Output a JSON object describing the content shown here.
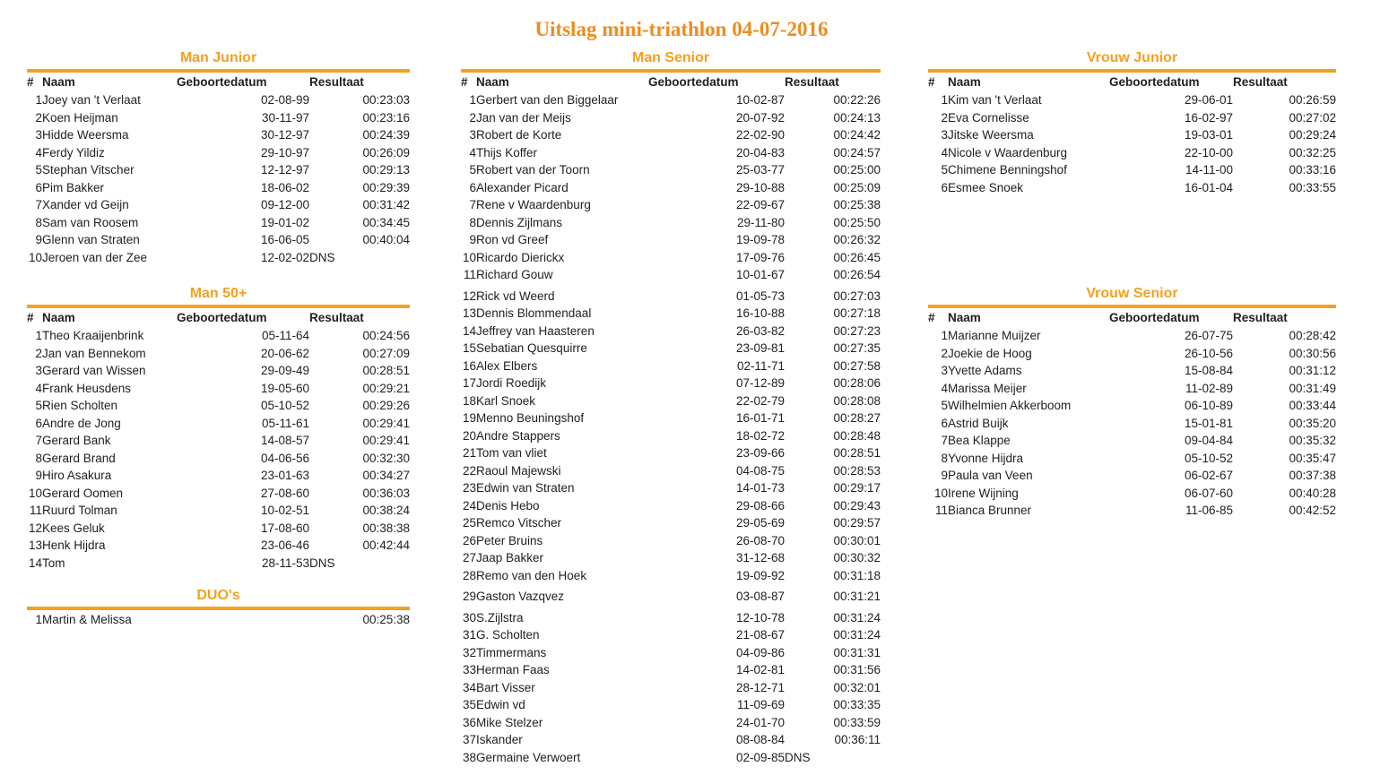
{
  "title": "Uitslag mini-triathlon 04-07-2016",
  "accent_color": "#f5a01e",
  "title_color": "#ed8d1e",
  "headers": {
    "rank": "#",
    "name": "Naam",
    "dob": "Geboortedatum",
    "result": "Resultaat"
  },
  "sections": {
    "man_junior": {
      "title": "Man Junior",
      "rows": [
        {
          "n": 1,
          "name": "Joey van 't Verlaat",
          "dob": "02-08-99",
          "res": "00:23:03"
        },
        {
          "n": 2,
          "name": "Koen Heijman",
          "dob": "30-11-97",
          "res": "00:23:16"
        },
        {
          "n": 3,
          "name": "Hidde Weersma",
          "dob": "30-12-97",
          "res": "00:24:39"
        },
        {
          "n": 4,
          "name": "Ferdy Yildiz",
          "dob": "29-10-97",
          "res": "00:26:09"
        },
        {
          "n": 5,
          "name": "Stephan Vitscher",
          "dob": "12-12-97",
          "res": "00:29:13"
        },
        {
          "n": 6,
          "name": "Pim Bakker",
          "dob": "18-06-02",
          "res": "00:29:39"
        },
        {
          "n": 7,
          "name": "Xander vd Geijn",
          "dob": "09-12-00",
          "res": "00:31:42"
        },
        {
          "n": 8,
          "name": "Sam van Roosem",
          "dob": "19-01-02",
          "res": "00:34:45"
        },
        {
          "n": 9,
          "name": "Glenn van Straten",
          "dob": "16-06-05",
          "res": "00:40:04"
        },
        {
          "n": 10,
          "name": "Jeroen van der Zee",
          "dob": "12-02-02",
          "dns": "DNS",
          "res": ""
        }
      ]
    },
    "man_50": {
      "title": "Man 50+",
      "rows": [
        {
          "n": 1,
          "name": "Theo Kraaijenbrink",
          "dob": "05-11-64",
          "res": "00:24:56"
        },
        {
          "n": 2,
          "name": "Jan van Bennekom",
          "dob": "20-06-62",
          "res": "00:27:09"
        },
        {
          "n": 3,
          "name": "Gerard van Wissen",
          "dob": "29-09-49",
          "res": "00:28:51"
        },
        {
          "n": 4,
          "name": "Frank Heusdens",
          "dob": "19-05-60",
          "res": "00:29:21"
        },
        {
          "n": 5,
          "name": "Rien Scholten",
          "dob": "05-10-52",
          "res": "00:29:26"
        },
        {
          "n": 6,
          "name": "Andre de Jong",
          "dob": "05-11-61",
          "res": "00:29:41"
        },
        {
          "n": 7,
          "name": "Gerard Bank",
          "dob": "14-08-57",
          "res": "00:29:41"
        },
        {
          "n": 8,
          "name": "Gerard Brand",
          "dob": "04-06-56",
          "res": "00:32:30"
        },
        {
          "n": 9,
          "name": "Hiro Asakura",
          "dob": "23-01-63",
          "res": "00:34:27"
        },
        {
          "n": 10,
          "name": "Gerard Oomen",
          "dob": "27-08-60",
          "res": "00:36:03"
        },
        {
          "n": 11,
          "name": "Ruurd Tolman",
          "dob": "10-02-51",
          "res": "00:38:24"
        },
        {
          "n": 12,
          "name": "Kees Geluk",
          "dob": "17-08-60",
          "res": "00:38:38"
        },
        {
          "n": 13,
          "name": "Henk Hijdra",
          "dob": "23-06-46",
          "res": "00:42:44"
        },
        {
          "n": 14,
          "name": "Tom",
          "dob": "28-11-53",
          "dns": "DNS",
          "res": ""
        }
      ]
    },
    "duos": {
      "title": "DUO's",
      "rows": [
        {
          "n": 1,
          "name": "Martin & Melissa",
          "dob": "",
          "res": "00:25:38"
        }
      ]
    },
    "man_senior": {
      "title": "Man Senior",
      "rows": [
        {
          "n": 1,
          "name": "Gerbert van den Biggelaar",
          "dob": "10-02-87",
          "res": "00:22:26"
        },
        {
          "n": 2,
          "name": "Jan van der Meijs",
          "dob": "20-07-92",
          "res": "00:24:13"
        },
        {
          "n": 3,
          "name": "Robert de Korte",
          "dob": "22-02-90",
          "res": "00:24:42"
        },
        {
          "n": 4,
          "name": "Thijs Koffer",
          "dob": "20-04-83",
          "res": "00:24:57"
        },
        {
          "n": 5,
          "name": "Robert van der Toorn",
          "dob": "25-03-77",
          "res": "00:25:00"
        },
        {
          "n": 6,
          "name": "Alexander Picard",
          "dob": "29-10-88",
          "res": "00:25:09"
        },
        {
          "n": 7,
          "name": "Rene v Waardenburg",
          "dob": "22-09-67",
          "res": "00:25:38"
        },
        {
          "n": 8,
          "name": "Dennis Zijlmans",
          "dob": "29-11-80",
          "res": "00:25:50"
        },
        {
          "n": 9,
          "name": "Ron vd Greef",
          "dob": "19-09-78",
          "res": "00:26:32"
        },
        {
          "n": 10,
          "name": "Ricardo Dierickx",
          "dob": "17-09-76",
          "res": "00:26:45"
        },
        {
          "n": 11,
          "name": "Richard Gouw",
          "dob": "10-01-67",
          "res": "00:26:54"
        },
        {
          "n": 12,
          "name": "Rick vd Weerd",
          "dob": "01-05-73",
          "res": "00:27:03",
          "gap": true
        },
        {
          "n": 13,
          "name": "Dennis Blommendaal",
          "dob": "16-10-88",
          "res": "00:27:18"
        },
        {
          "n": 14,
          "name": "Jeffrey van Haasteren",
          "dob": "26-03-82",
          "res": "00:27:23"
        },
        {
          "n": 15,
          "name": "Sebatian Quesquirre",
          "dob": "23-09-81",
          "res": "00:27:35"
        },
        {
          "n": 16,
          "name": "Alex Elbers",
          "dob": "02-11-71",
          "res": "00:27:58"
        },
        {
          "n": 17,
          "name": "Jordi Roedijk",
          "dob": "07-12-89",
          "res": "00:28:06"
        },
        {
          "n": 18,
          "name": "Karl Snoek",
          "dob": "22-02-79",
          "res": "00:28:08"
        },
        {
          "n": 19,
          "name": "Menno Beuningshof",
          "dob": "16-01-71",
          "res": "00:28:27"
        },
        {
          "n": 20,
          "name": "Andre Stappers",
          "dob": "18-02-72",
          "res": "00:28:48"
        },
        {
          "n": 21,
          "name": "Tom van vliet",
          "dob": "23-09-66",
          "res": "00:28:51"
        },
        {
          "n": 22,
          "name": "Raoul Majewski",
          "dob": "04-08-75",
          "res": "00:28:53"
        },
        {
          "n": 23,
          "name": "Edwin van Straten",
          "dob": "14-01-73",
          "res": "00:29:17"
        },
        {
          "n": 24,
          "name": "Denis Hebo",
          "dob": "29-08-66",
          "res": "00:29:43"
        },
        {
          "n": 25,
          "name": "Remco Vitscher",
          "dob": "29-05-69",
          "res": "00:29:57"
        },
        {
          "n": 26,
          "name": "Peter Bruins",
          "dob": "26-08-70",
          "res": "00:30:01"
        },
        {
          "n": 27,
          "name": "Jaap Bakker",
          "dob": "31-12-68",
          "res": "00:30:32"
        },
        {
          "n": 28,
          "name": "Remo van den Hoek",
          "dob": "19-09-92",
          "res": "00:31:18"
        },
        {
          "n": 29,
          "name": "Gaston Vazqvez",
          "dob": "03-08-87",
          "res": "00:31:21",
          "gap": true
        },
        {
          "n": 30,
          "name": "S.Zijlstra",
          "dob": "12-10-78",
          "res": "00:31:24",
          "gap": true
        },
        {
          "n": 31,
          "name": "G. Scholten",
          "dob": "21-08-67",
          "res": "00:31:24"
        },
        {
          "n": 32,
          "name": "Timmermans",
          "dob": "04-09-86",
          "res": "00:31:31"
        },
        {
          "n": 33,
          "name": "Herman Faas",
          "dob": "14-02-81",
          "res": "00:31:56"
        },
        {
          "n": 34,
          "name": "Bart Visser",
          "dob": "28-12-71",
          "res": "00:32:01"
        },
        {
          "n": 35,
          "name": "Edwin vd",
          "dob": "11-09-69",
          "res": "00:33:35"
        },
        {
          "n": 36,
          "name": "Mike Stelzer",
          "dob": "24-01-70",
          "res": "00:33:59"
        },
        {
          "n": 37,
          "name": "Iskander",
          "dob": "08-08-84",
          "res": "00:36:11"
        },
        {
          "n": 38,
          "name": "Germaine Verwoert",
          "dob": "02-09-85",
          "dns": "DNS",
          "res": ""
        }
      ]
    },
    "vrouw_junior": {
      "title": "Vrouw Junior",
      "rows": [
        {
          "n": 1,
          "name": "Kim van 't Verlaat",
          "dob": "29-06-01",
          "res": "00:26:59"
        },
        {
          "n": 2,
          "name": "Eva Cornelisse",
          "dob": "16-02-97",
          "res": "00:27:02"
        },
        {
          "n": 3,
          "name": "Jitske Weersma",
          "dob": "19-03-01",
          "res": "00:29:24"
        },
        {
          "n": 4,
          "name": "Nicole v Waardenburg",
          "dob": "22-10-00",
          "res": "00:32:25"
        },
        {
          "n": 5,
          "name": "Chimene Benningshof",
          "dob": "14-11-00",
          "res": "00:33:16"
        },
        {
          "n": 6,
          "name": "Esmee Snoek",
          "dob": "16-01-04",
          "res": "00:33:55"
        }
      ]
    },
    "vrouw_senior": {
      "title": "Vrouw Senior",
      "rows": [
        {
          "n": 1,
          "name": "Marianne Muijzer",
          "dob": "26-07-75",
          "res": "00:28:42"
        },
        {
          "n": 2,
          "name": "Joekie de Hoog",
          "dob": "26-10-56",
          "res": "00:30:56"
        },
        {
          "n": 3,
          "name": "Yvette Adams",
          "dob": "15-08-84",
          "res": "00:31:12"
        },
        {
          "n": 4,
          "name": "Marissa Meijer",
          "dob": "11-02-89",
          "res": "00:31:49"
        },
        {
          "n": 5,
          "name": "Wilhelmien Akkerboom",
          "dob": "06-10-89",
          "res": "00:33:44"
        },
        {
          "n": 6,
          "name": "Astrid Buijk",
          "dob": "15-01-81",
          "res": "00:35:20"
        },
        {
          "n": 7,
          "name": "Bea Klappe",
          "dob": "09-04-84",
          "res": "00:35:32"
        },
        {
          "n": 8,
          "name": "Yvonne Hijdra",
          "dob": "05-10-52",
          "res": "00:35:47"
        },
        {
          "n": 9,
          "name": "Paula van Veen",
          "dob": "06-02-67",
          "res": "00:37:38"
        },
        {
          "n": 10,
          "name": "Irene Wijning",
          "dob": "06-07-60",
          "res": "00:40:28"
        },
        {
          "n": 11,
          "name": "Bianca Brunner",
          "dob": "11-06-85",
          "res": "00:42:52"
        }
      ]
    }
  }
}
